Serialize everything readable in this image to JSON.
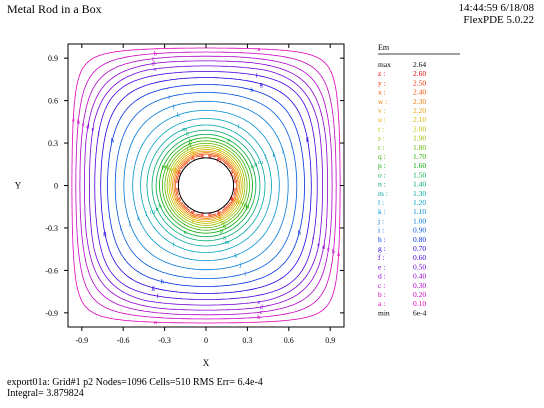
{
  "header": {
    "title": "Metal Rod in a Box",
    "time": "14:44:59 6/18/08",
    "version": "FlexPDE 5.0.22"
  },
  "footer": {
    "line1": "export01a:  Grid#1  p2  Nodes=1096 Cells=510 RMS Err= 6.4e-4",
    "line2": "Integral=  3.879824"
  },
  "chart_data": {
    "type": "contour",
    "xlabel": "X",
    "ylabel": "Y",
    "xlim": [
      -1,
      1
    ],
    "ylim": [
      -1,
      1
    ],
    "xticks": [
      -0.9,
      -0.6,
      -0.3,
      0,
      0.3,
      0.6,
      0.9
    ],
    "xtick_labels": [
      "-0.9",
      "-0.6",
      "-0.3",
      "0",
      "0.3",
      "0.6",
      "0.9"
    ],
    "yticks": [
      0.9,
      0.6,
      0.3,
      0,
      -0.3,
      -0.6,
      -0.9
    ],
    "ytick_labels": [
      "0.9",
      "0.6",
      "0.3",
      "0",
      "-0.3",
      "-0.6",
      "-0.9"
    ],
    "rod_radius": 0.2,
    "legend": {
      "variable": "Em",
      "max_label": "max",
      "max_value": "2.64",
      "min_label": "min",
      "min_value": "6e-4",
      "levels": [
        {
          "label": "z :",
          "value": "2.60",
          "level": 2.6,
          "color": "#e00000"
        },
        {
          "label": "y :",
          "value": "2.50",
          "level": 2.5,
          "color": "#f02a00"
        },
        {
          "label": "x :",
          "value": "2.40",
          "level": 2.4,
          "color": "#f05000"
        },
        {
          "label": "w :",
          "value": "2.30",
          "level": 2.3,
          "color": "#f07800"
        },
        {
          "label": "v :",
          "value": "2.20",
          "level": 2.2,
          "color": "#e89a00"
        },
        {
          "label": "u :",
          "value": "2.10",
          "level": 2.1,
          "color": "#d8b400"
        },
        {
          "label": "t :",
          "value": "2.00",
          "level": 2.0,
          "color": "#c0c000"
        },
        {
          "label": "s :",
          "value": "1.90",
          "level": 1.9,
          "color": "#98c000"
        },
        {
          "label": "r :",
          "value": "1.80",
          "level": 1.8,
          "color": "#60b800"
        },
        {
          "label": "q :",
          "value": "1.70",
          "level": 1.7,
          "color": "#30b000"
        },
        {
          "label": "p :",
          "value": "1.60",
          "level": 1.6,
          "color": "#00a800"
        },
        {
          "label": "o :",
          "value": "1.50",
          "level": 1.5,
          "color": "#00a840"
        },
        {
          "label": "n :",
          "value": "1.40",
          "level": 1.4,
          "color": "#00a870"
        },
        {
          "label": "m :",
          "value": "1.30",
          "level": 1.3,
          "color": "#00a8a0"
        },
        {
          "label": "l :",
          "value": "1.20",
          "level": 1.2,
          "color": "#00a0c0"
        },
        {
          "label": "k :",
          "value": "1.10",
          "level": 1.1,
          "color": "#0090d0"
        },
        {
          "label": "j :",
          "value": "1.00",
          "level": 1.0,
          "color": "#0078d8"
        },
        {
          "label": "i :",
          "value": "0.90",
          "level": 0.9,
          "color": "#0058e0"
        },
        {
          "label": "h :",
          "value": "0.80",
          "level": 0.8,
          "color": "#0030e0"
        },
        {
          "label": "g :",
          "value": "0.70",
          "level": 0.7,
          "color": "#2000e0"
        },
        {
          "label": "f :",
          "value": "0.60",
          "level": 0.6,
          "color": "#4800e0"
        },
        {
          "label": "e :",
          "value": "0.50",
          "level": 0.5,
          "color": "#7000d8"
        },
        {
          "label": "d :",
          "value": "0.40",
          "level": 0.4,
          "color": "#9000d0"
        },
        {
          "label": "c :",
          "value": "0.30",
          "level": 0.3,
          "color": "#b000c8"
        },
        {
          "label": "b :",
          "value": "0.20",
          "level": 0.2,
          "color": "#c800c0"
        },
        {
          "label": "a :",
          "value": "0.10",
          "level": 0.1,
          "color": "#e000b8"
        }
      ]
    }
  }
}
